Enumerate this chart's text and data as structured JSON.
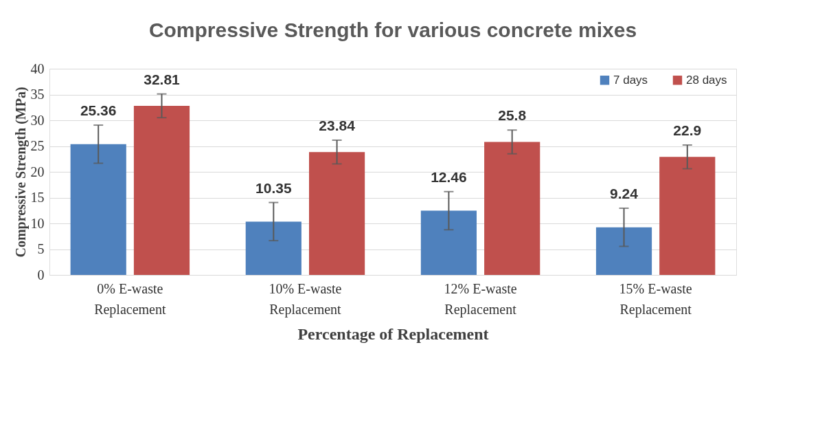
{
  "chart_data": {
    "type": "bar",
    "title": "Compressive Strength for various concrete mixes",
    "xlabel": "Percentage of Replacement",
    "ylabel": "Compressive  Strength (MPa)",
    "categories": [
      "0% E-waste\nReplacement",
      "10% E-waste\nReplacement",
      "12% E-waste\nReplacement",
      "15%   E-waste\nReplacement"
    ],
    "series": [
      {
        "name": "7  days",
        "color": "#4f81bd",
        "values": [
          25.36,
          10.35,
          12.46,
          9.24
        ],
        "errors": [
          3.7,
          3.7,
          3.7,
          3.7
        ]
      },
      {
        "name": "28  days",
        "color": "#c0504d",
        "values": [
          32.81,
          23.84,
          25.8,
          22.9
        ],
        "errors": [
          2.3,
          2.3,
          2.3,
          2.3
        ]
      }
    ],
    "ylim": [
      0,
      40
    ],
    "yticks": [
      0,
      5,
      10,
      15,
      20,
      25,
      30,
      35,
      40
    ],
    "grid": "y",
    "legend": "top right",
    "data_labels": true
  }
}
